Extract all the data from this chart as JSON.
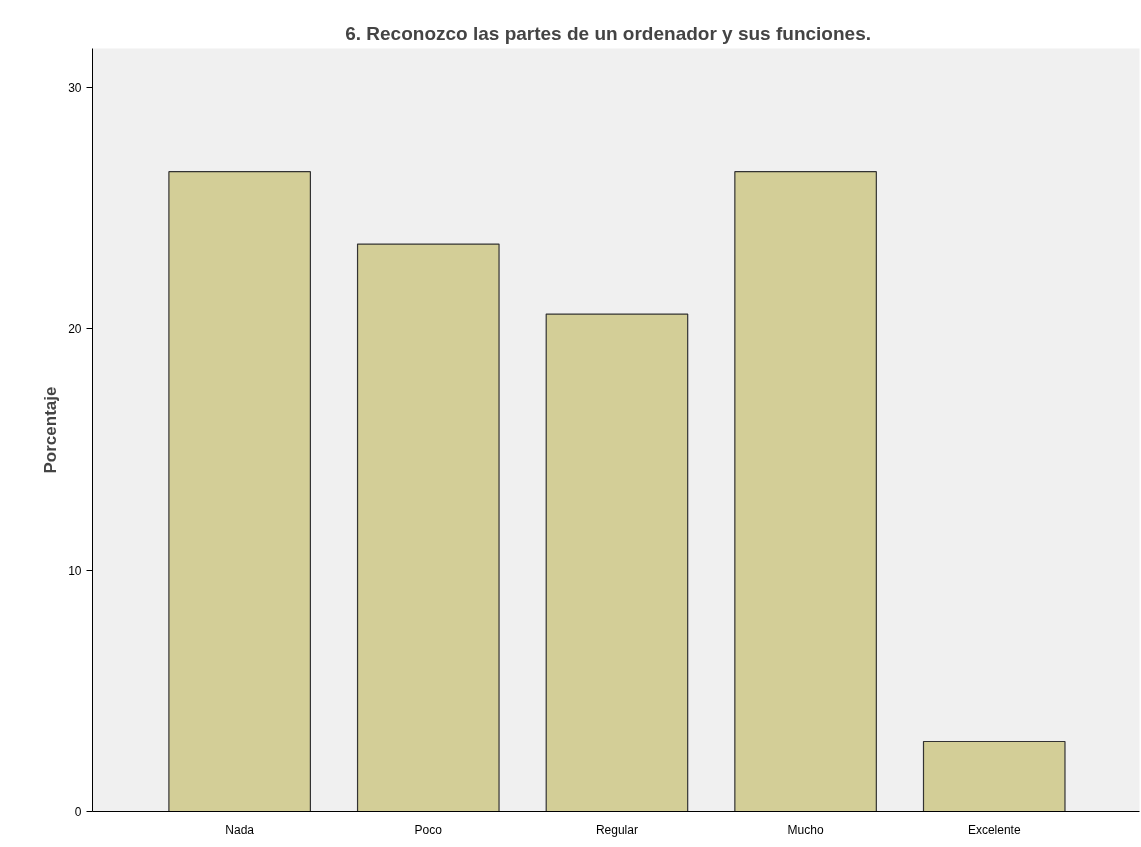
{
  "chart_data": {
    "type": "bar",
    "title": "6.    Reconozco las partes de un ordenador y sus funciones.",
    "ylabel": "Porcentaje",
    "categories": [
      "Nada",
      "Poco",
      "Regular",
      "Mucho",
      "Excelente"
    ],
    "values": [
      26.5,
      23.5,
      20.6,
      26.5,
      2.9
    ],
    "color": "#d3ce97",
    "ylim": [
      0,
      31.6
    ],
    "yticks": [
      0,
      10,
      20,
      30
    ],
    "grid": false
  }
}
